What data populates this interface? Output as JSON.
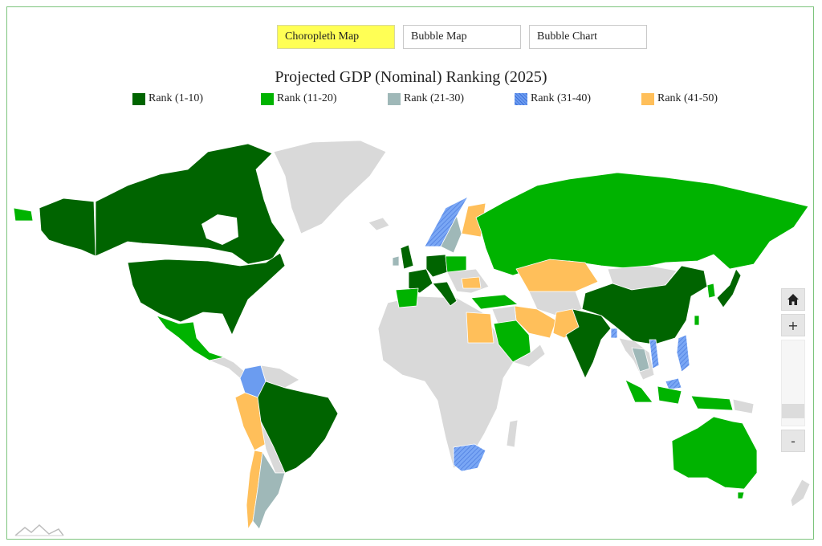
{
  "tabs": {
    "choropleth": "Choropleth Map",
    "bubble_map": "Bubble Map",
    "bubble_chart": "Bubble Chart",
    "active": "choropleth"
  },
  "title": "Projected GDP (Nominal) Ranking (2025)",
  "legend": [
    {
      "label": "Rank (1-10)",
      "color": "#006400"
    },
    {
      "label": "Rank (11-20)",
      "color": "#00b300"
    },
    {
      "label": "Rank (21-30)",
      "color": "#9fb8b8"
    },
    {
      "label": "Rank (31-40)",
      "color": "#6b9cf0"
    },
    {
      "label": "Rank (41-50)",
      "color": "#ffbf5a"
    }
  ],
  "map_colors": {
    "unranked": "#d9d9d9",
    "border": "#ffffff"
  },
  "zoom": {
    "home_icon": "home-icon",
    "zoom_in": "+",
    "zoom_out": "-",
    "level": 0.1
  }
}
